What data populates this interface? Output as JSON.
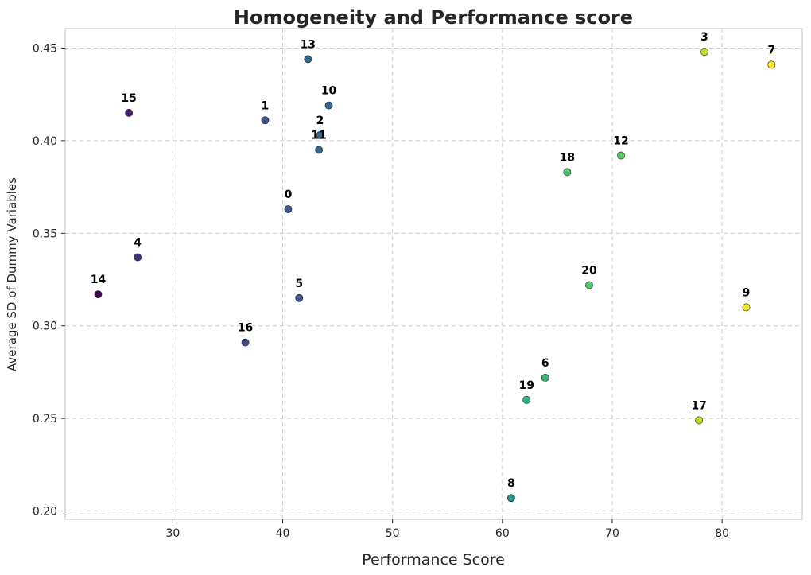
{
  "chart_data": {
    "type": "scatter",
    "title": "Homogeneity and Performance score",
    "xlabel": "Performance Score",
    "ylabel": "Average SD of Dummy Variables",
    "xlim": [
      20.2,
      87.3
    ],
    "ylim": [
      0.1955,
      0.4605
    ],
    "xticks": [
      30,
      40,
      50,
      60,
      70,
      80
    ],
    "yticks": [
      0.2,
      0.25,
      0.3,
      0.35,
      0.4,
      0.45
    ],
    "grid": true,
    "colormap": "viridis",
    "points": [
      {
        "label": "0",
        "x": 40.5,
        "y": 0.363,
        "color": "#3b528b"
      },
      {
        "label": "1",
        "x": 38.4,
        "y": 0.411,
        "color": "#3b528b"
      },
      {
        "label": "2",
        "x": 43.4,
        "y": 0.403,
        "color": "#31688e"
      },
      {
        "label": "3",
        "x": 78.4,
        "y": 0.448,
        "color": "#c2df23"
      },
      {
        "label": "4",
        "x": 26.8,
        "y": 0.337,
        "color": "#46327e"
      },
      {
        "label": "5",
        "x": 41.5,
        "y": 0.315,
        "color": "#3b528b"
      },
      {
        "label": "6",
        "x": 63.9,
        "y": 0.272,
        "color": "#35b779"
      },
      {
        "label": "7",
        "x": 84.5,
        "y": 0.441,
        "color": "#fde725"
      },
      {
        "label": "8",
        "x": 60.8,
        "y": 0.207,
        "color": "#21918c"
      },
      {
        "label": "9",
        "x": 82.2,
        "y": 0.31,
        "color": "#f1e51d"
      },
      {
        "label": "10",
        "x": 44.2,
        "y": 0.419,
        "color": "#31688e"
      },
      {
        "label": "11",
        "x": 43.3,
        "y": 0.395,
        "color": "#31688e"
      },
      {
        "label": "12",
        "x": 70.8,
        "y": 0.392,
        "color": "#5ec962"
      },
      {
        "label": "13",
        "x": 42.3,
        "y": 0.444,
        "color": "#31688e"
      },
      {
        "label": "14",
        "x": 23.2,
        "y": 0.317,
        "color": "#440154"
      },
      {
        "label": "15",
        "x": 26.0,
        "y": 0.415,
        "color": "#481b6d"
      },
      {
        "label": "16",
        "x": 36.6,
        "y": 0.291,
        "color": "#3e4989"
      },
      {
        "label": "17",
        "x": 77.9,
        "y": 0.249,
        "color": "#bddf26"
      },
      {
        "label": "18",
        "x": 65.9,
        "y": 0.383,
        "color": "#4ac16d"
      },
      {
        "label": "19",
        "x": 62.2,
        "y": 0.26,
        "color": "#2db27d"
      },
      {
        "label": "20",
        "x": 67.9,
        "y": 0.322,
        "color": "#52c569"
      }
    ]
  }
}
